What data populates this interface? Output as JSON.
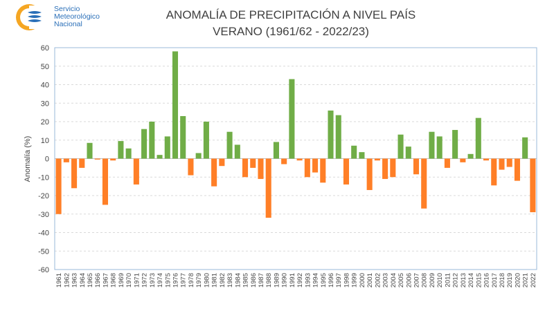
{
  "logo": {
    "line1": "Servicio",
    "line2": "Meteorológico",
    "line3": "Nacional"
  },
  "colors": {
    "positive": "#70ad47",
    "negative": "#ff7f27",
    "logo_blue": "#2a6fb8",
    "logo_orange": "#f5a623"
  },
  "chart_data": {
    "type": "bar",
    "title": "ANOMALÍA DE PRECIPITACIÓN A NIVEL PAÍS",
    "subtitle": "VERANO (1961/62 - 2022/23)",
    "ylabel": "Anomalía (%)",
    "xlabel": "",
    "ylim": [
      -60,
      60
    ],
    "yticks": [
      60,
      50,
      40,
      30,
      20,
      10,
      0,
      -10,
      -20,
      -30,
      -40,
      -50,
      -60
    ],
    "grid": true,
    "legend": "none",
    "categories": [
      "1961",
      "1962",
      "1963",
      "1964",
      "1965",
      "1966",
      "1967",
      "1968",
      "1969",
      "1970",
      "1971",
      "1972",
      "1973",
      "1974",
      "1975",
      "1976",
      "1977",
      "1978",
      "1979",
      "1980",
      "1981",
      "1982",
      "1983",
      "1984",
      "1985",
      "1986",
      "1987",
      "1988",
      "1989",
      "1990",
      "1991",
      "1992",
      "1993",
      "1994",
      "1995",
      "1996",
      "1997",
      "1998",
      "1999",
      "2000",
      "2001",
      "2002",
      "2003",
      "2004",
      "2005",
      "2006",
      "2007",
      "2008",
      "2009",
      "2010",
      "2011",
      "2012",
      "2013",
      "2014",
      "2015",
      "2016",
      "2017",
      "2018",
      "2019",
      "2020",
      "2021",
      "2022"
    ],
    "values": [
      -30,
      -2,
      -16,
      -5,
      8.5,
      -0.5,
      -25,
      -1,
      9.5,
      5.5,
      -14,
      16,
      20,
      2,
      12,
      58,
      23,
      -9,
      3,
      20,
      -15,
      -4,
      14.5,
      7.5,
      -10,
      -5,
      -11,
      -32,
      9,
      -3,
      43,
      -1,
      -10,
      -7.5,
      -13,
      26,
      23.5,
      -14,
      7,
      3.5,
      -17,
      -1,
      -11,
      -10,
      13,
      6.5,
      -8.5,
      -27,
      14.5,
      12,
      -5,
      15.5,
      -2,
      2.5,
      22,
      -1,
      -14.5,
      -6,
      -4.5,
      -12,
      11.5,
      -29
    ]
  }
}
